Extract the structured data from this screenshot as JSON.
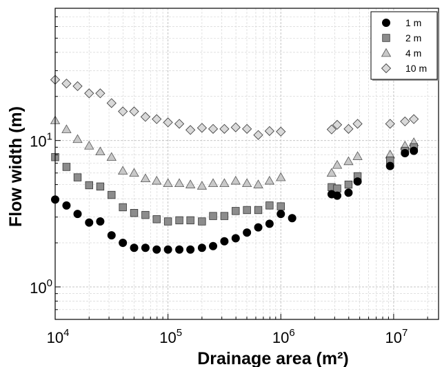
{
  "chart_data": {
    "type": "scatter",
    "xlabel": "Drainage area (m²)",
    "ylabel": "Flow width (m)",
    "x_scale": "log",
    "y_scale": "log",
    "xlim": [
      10000,
      25000000
    ],
    "ylim": [
      0.6,
      80
    ],
    "grid": true,
    "legend_position": "top-right",
    "x_tick_labels": [
      {
        "value": 10000,
        "base": "10",
        "exp": "4"
      },
      {
        "value": 100000,
        "base": "10",
        "exp": "5"
      },
      {
        "value": 1000000,
        "base": "10",
        "exp": "6"
      },
      {
        "value": 10000000,
        "base": "10",
        "exp": "7"
      }
    ],
    "y_tick_labels": [
      {
        "value": 1,
        "base": "10",
        "exp": "0"
      },
      {
        "value": 10,
        "base": "10",
        "exp": "1"
      }
    ],
    "series": [
      {
        "name": "1 m",
        "marker": "circle",
        "color": "#000000",
        "points": [
          [
            10000,
            3.95
          ],
          [
            12600,
            3.6
          ],
          [
            15800,
            3.15
          ],
          [
            20000,
            2.75
          ],
          [
            25100,
            2.8
          ],
          [
            31600,
            2.25
          ],
          [
            39800,
            2.0
          ],
          [
            50100,
            1.85
          ],
          [
            63100,
            1.85
          ],
          [
            79400,
            1.8
          ],
          [
            100000,
            1.8
          ],
          [
            126000,
            1.8
          ],
          [
            158000,
            1.8
          ],
          [
            200000,
            1.85
          ],
          [
            251000,
            1.9
          ],
          [
            316000,
            2.05
          ],
          [
            398000,
            2.15
          ],
          [
            501000,
            2.35
          ],
          [
            631000,
            2.55
          ],
          [
            794000,
            2.7
          ],
          [
            1000000,
            3.15
          ],
          [
            1260000,
            2.95
          ],
          [
            2820000,
            4.3
          ],
          [
            3160000,
            4.2
          ],
          [
            3980000,
            4.4
          ],
          [
            4790000,
            5.25
          ],
          [
            9300000,
            6.7
          ],
          [
            12600000,
            8.2
          ],
          [
            15100000,
            8.5
          ]
        ]
      },
      {
        "name": "2 m",
        "marker": "square",
        "color": "#8c8c8c",
        "points": [
          [
            10000,
            7.7
          ],
          [
            12600,
            6.6
          ],
          [
            15800,
            5.6
          ],
          [
            20000,
            4.95
          ],
          [
            25100,
            4.85
          ],
          [
            31600,
            4.25
          ],
          [
            39800,
            3.5
          ],
          [
            50100,
            3.2
          ],
          [
            63100,
            3.1
          ],
          [
            79400,
            2.9
          ],
          [
            100000,
            2.8
          ],
          [
            126000,
            2.85
          ],
          [
            158000,
            2.85
          ],
          [
            200000,
            2.8
          ],
          [
            251000,
            3.05
          ],
          [
            316000,
            3.05
          ],
          [
            398000,
            3.3
          ],
          [
            501000,
            3.35
          ],
          [
            631000,
            3.35
          ],
          [
            794000,
            3.6
          ],
          [
            1000000,
            3.55
          ],
          [
            2820000,
            4.8
          ],
          [
            3160000,
            4.7
          ],
          [
            3980000,
            5.0
          ],
          [
            4790000,
            5.7
          ],
          [
            9300000,
            7.3
          ],
          [
            12600000,
            8.5
          ],
          [
            15100000,
            9.0
          ]
        ]
      },
      {
        "name": "4 m",
        "marker": "triangle",
        "color": "#c8c8c8",
        "points": [
          [
            10000,
            13.7
          ],
          [
            12600,
            11.9
          ],
          [
            15800,
            10.2
          ],
          [
            20000,
            9.2
          ],
          [
            25100,
            8.4
          ],
          [
            31600,
            7.7
          ],
          [
            39800,
            6.2
          ],
          [
            50100,
            6.0
          ],
          [
            63100,
            5.5
          ],
          [
            79400,
            5.3
          ],
          [
            100000,
            5.1
          ],
          [
            126000,
            5.1
          ],
          [
            158000,
            5.0
          ],
          [
            200000,
            4.9
          ],
          [
            251000,
            5.1
          ],
          [
            316000,
            5.1
          ],
          [
            398000,
            5.3
          ],
          [
            501000,
            5.1
          ],
          [
            631000,
            5.0
          ],
          [
            794000,
            5.3
          ],
          [
            1000000,
            5.6
          ],
          [
            2820000,
            6.0
          ],
          [
            3160000,
            6.8
          ],
          [
            3980000,
            7.2
          ],
          [
            4790000,
            7.8
          ],
          [
            9300000,
            8.0
          ],
          [
            12600000,
            9.2
          ],
          [
            15100000,
            9.7
          ]
        ]
      },
      {
        "name": "10 m",
        "marker": "diamond",
        "color": "#d9d9d9",
        "points": [
          [
            10000,
            26
          ],
          [
            12600,
            24.5
          ],
          [
            15800,
            23.5
          ],
          [
            20000,
            21
          ],
          [
            25100,
            21
          ],
          [
            31600,
            18
          ],
          [
            39800,
            15.8
          ],
          [
            50100,
            15.8
          ],
          [
            63100,
            14.5
          ],
          [
            79400,
            14.0
          ],
          [
            100000,
            13.3
          ],
          [
            126000,
            13.0
          ],
          [
            158000,
            11.8
          ],
          [
            200000,
            12.2
          ],
          [
            251000,
            12.0
          ],
          [
            316000,
            12.0
          ],
          [
            398000,
            12.3
          ],
          [
            501000,
            12.0
          ],
          [
            631000,
            10.9
          ],
          [
            794000,
            11.6
          ],
          [
            1000000,
            11.5
          ],
          [
            2820000,
            11.9
          ],
          [
            3160000,
            12.8
          ],
          [
            3980000,
            12.0
          ],
          [
            4790000,
            13.0
          ],
          [
            9300000,
            13.0
          ],
          [
            12600000,
            13.5
          ],
          [
            15100000,
            14.0
          ]
        ]
      }
    ]
  }
}
